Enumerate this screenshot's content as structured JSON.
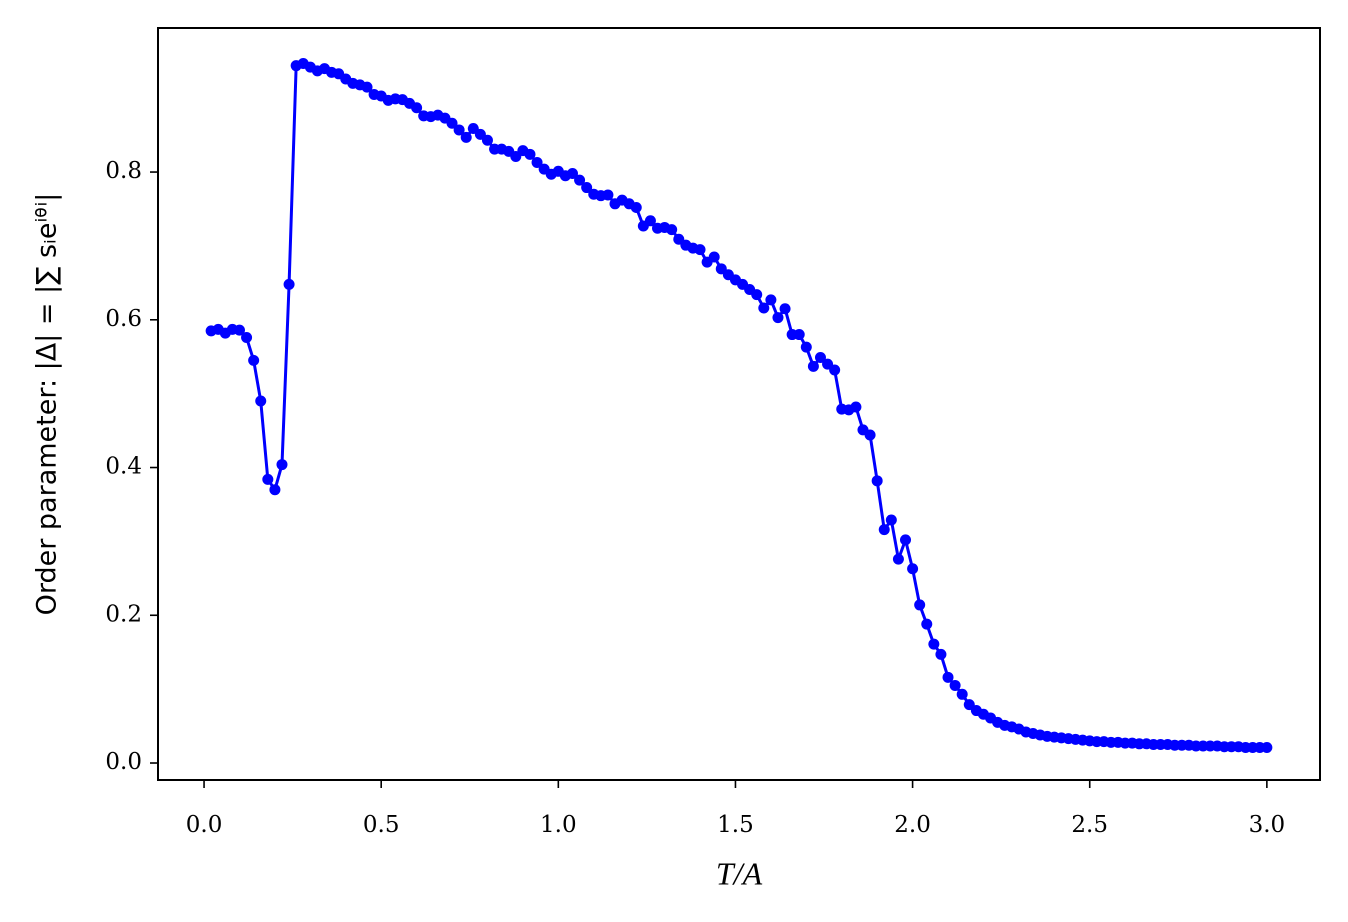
{
  "chart_data": {
    "type": "line",
    "xlabel": "T/A",
    "ylabel": "Order parameter: |Δ| = |∑ sᵢeⁱᶿⁱ|",
    "xlim": [
      -0.13,
      3.15
    ],
    "ylim": [
      -0.023,
      0.995
    ],
    "xticks": [
      {
        "value": 0,
        "label": "0.0"
      },
      0.5,
      {
        "value": 1,
        "label": "1.0"
      },
      1.5,
      {
        "value": 2,
        "label": "2.0"
      },
      2.5,
      {
        "value": 3,
        "label": "3.0"
      }
    ],
    "yticks": [
      {
        "value": 0,
        "label": "0.0"
      },
      0.2,
      0.4,
      0.6,
      0.8
    ],
    "grid": false,
    "x": [
      0.02,
      0.04,
      0.06,
      0.08,
      0.1,
      0.12,
      0.14,
      0.16,
      0.18,
      0.2,
      0.22,
      0.24,
      0.26,
      0.28,
      0.3,
      0.32,
      0.34,
      0.36,
      0.38,
      0.4,
      0.42,
      0.44,
      0.46,
      0.48,
      0.5,
      0.52,
      0.54,
      0.56,
      0.58,
      0.6,
      0.62,
      0.64,
      0.66,
      0.68,
      0.7,
      0.72,
      0.74,
      0.76,
      0.78,
      0.8,
      0.82,
      0.84,
      0.86,
      0.88,
      0.9,
      0.92,
      0.94,
      0.96,
      0.98,
      1.0,
      1.02,
      1.04,
      1.06,
      1.08,
      1.1,
      1.12,
      1.14,
      1.16,
      1.18,
      1.2,
      1.22,
      1.24,
      1.26,
      1.28,
      1.3,
      1.32,
      1.34,
      1.36,
      1.38,
      1.4,
      1.42,
      1.44,
      1.46,
      1.48,
      1.5,
      1.52,
      1.54,
      1.56,
      1.58,
      1.6,
      1.62,
      1.64,
      1.66,
      1.68,
      1.7,
      1.72,
      1.74,
      1.76,
      1.78,
      1.8,
      1.82,
      1.84,
      1.86,
      1.88,
      1.9,
      1.92,
      1.94,
      1.96,
      1.98,
      2.0,
      2.02,
      2.04,
      2.06,
      2.08,
      2.1,
      2.12,
      2.14,
      2.16,
      2.18,
      2.2,
      2.22,
      2.24,
      2.26,
      2.28,
      2.3,
      2.32,
      2.34,
      2.36,
      2.38,
      2.4,
      2.42,
      2.44,
      2.46,
      2.48,
      2.5,
      2.52,
      2.54,
      2.56,
      2.58,
      2.6,
      2.62,
      2.64,
      2.66,
      2.68,
      2.7,
      2.72,
      2.74,
      2.76,
      2.78,
      2.8,
      2.82,
      2.84,
      2.86,
      2.88,
      2.9,
      2.92,
      2.94,
      2.96,
      2.98,
      3.0
    ],
    "series": [
      {
        "color": "#0000ff",
        "values": [
          0.585,
          0.587,
          0.582,
          0.587,
          0.586,
          0.576,
          0.545,
          0.49,
          0.384,
          0.37,
          0.404,
          0.648,
          0.944,
          0.947,
          0.942,
          0.937,
          0.94,
          0.935,
          0.933,
          0.926,
          0.92,
          0.918,
          0.915,
          0.905,
          0.903,
          0.897,
          0.899,
          0.898,
          0.893,
          0.887,
          0.876,
          0.875,
          0.877,
          0.873,
          0.866,
          0.857,
          0.847,
          0.859,
          0.851,
          0.843,
          0.831,
          0.831,
          0.828,
          0.821,
          0.829,
          0.824,
          0.813,
          0.804,
          0.797,
          0.801,
          0.795,
          0.798,
          0.789,
          0.779,
          0.77,
          0.768,
          0.769,
          0.757,
          0.762,
          0.757,
          0.752,
          0.727,
          0.734,
          0.724,
          0.725,
          0.722,
          0.709,
          0.701,
          0.697,
          0.695,
          0.678,
          0.685,
          0.669,
          0.661,
          0.654,
          0.648,
          0.641,
          0.634,
          0.616,
          0.627,
          0.603,
          0.615,
          0.58,
          0.58,
          0.563,
          0.537,
          0.549,
          0.54,
          0.532,
          0.479,
          0.478,
          0.482,
          0.451,
          0.444,
          0.382,
          0.316,
          0.329,
          0.276,
          0.302,
          0.263,
          0.214,
          0.188,
          0.161,
          0.147,
          0.116,
          0.105,
          0.093,
          0.079,
          0.071,
          0.066,
          0.061,
          0.055,
          0.051,
          0.049,
          0.046,
          0.042,
          0.04,
          0.038,
          0.036,
          0.035,
          0.034,
          0.033,
          0.032,
          0.031,
          0.03,
          0.029,
          0.029,
          0.028,
          0.028,
          0.027,
          0.027,
          0.026,
          0.026,
          0.025,
          0.025,
          0.025,
          0.024,
          0.024,
          0.024,
          0.023,
          0.023,
          0.023,
          0.023,
          0.022,
          0.022,
          0.022,
          0.021,
          0.021,
          0.021,
          0.021
        ]
      }
    ]
  }
}
